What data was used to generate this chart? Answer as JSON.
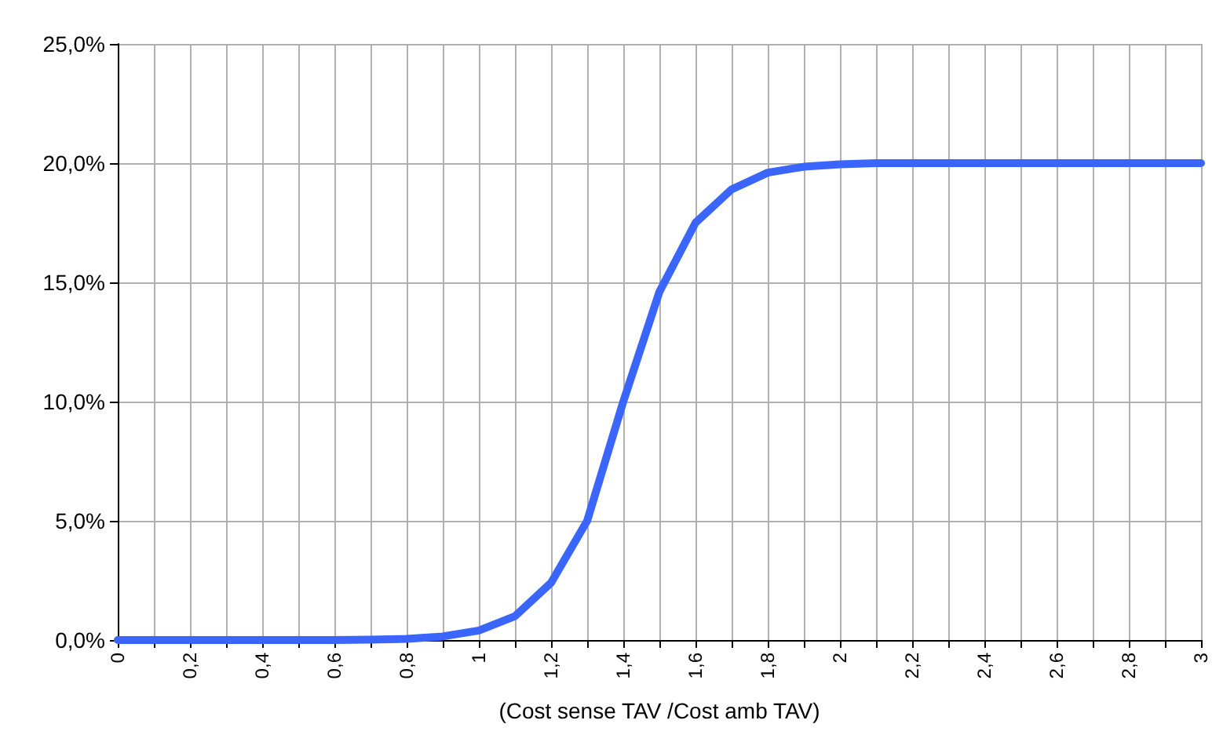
{
  "chart_data": {
    "type": "line",
    "xlabel": "(Cost sense TAV /Cost amb TAV)",
    "x": [
      0,
      0.2,
      0.4,
      0.6,
      0.7,
      0.8,
      0.9,
      1.0,
      1.1,
      1.2,
      1.3,
      1.4,
      1.5,
      1.6,
      1.7,
      1.8,
      1.9,
      2.0,
      2.1,
      2.2,
      2.4,
      2.6,
      2.8,
      3.0
    ],
    "series": [
      {
        "color": "#3a66ff",
        "values": [
          0,
          0,
          0,
          0,
          0.02,
          0.05,
          0.15,
          0.4,
          1.0,
          2.4,
          5.0,
          10.0,
          14.6,
          17.5,
          18.9,
          19.6,
          19.85,
          19.95,
          20,
          20,
          20,
          20,
          20,
          20
        ]
      }
    ],
    "xlim": [
      0,
      3
    ],
    "xticks": [
      {
        "value": 0,
        "label": "0"
      },
      {
        "value": 0.1,
        "label": null
      },
      {
        "value": 0.2,
        "label": "0,2"
      },
      {
        "value": 0.3,
        "label": null
      },
      {
        "value": 0.4,
        "label": "0,4"
      },
      {
        "value": 0.5,
        "label": null
      },
      {
        "value": 0.6,
        "label": "0,6"
      },
      {
        "value": 0.7,
        "label": null
      },
      {
        "value": 0.8,
        "label": "0,8"
      },
      {
        "value": 0.9,
        "label": null
      },
      {
        "value": 1,
        "label": "1"
      },
      {
        "value": 1.1,
        "label": null
      },
      {
        "value": 1.2,
        "label": "1,2"
      },
      {
        "value": 1.3,
        "label": null
      },
      {
        "value": 1.4,
        "label": "1,4"
      },
      {
        "value": 1.5,
        "label": null
      },
      {
        "value": 1.6,
        "label": "1,6"
      },
      {
        "value": 1.7,
        "label": null
      },
      {
        "value": 1.8,
        "label": "1,8"
      },
      {
        "value": 1.9,
        "label": null
      },
      {
        "value": 2,
        "label": "2"
      },
      {
        "value": 2.1,
        "label": null
      },
      {
        "value": 2.2,
        "label": "2,2"
      },
      {
        "value": 2.3,
        "label": null
      },
      {
        "value": 2.4,
        "label": "2,4"
      },
      {
        "value": 2.5,
        "label": null
      },
      {
        "value": 2.6,
        "label": "2,6"
      },
      {
        "value": 2.7,
        "label": null
      },
      {
        "value": 2.8,
        "label": "2,8"
      },
      {
        "value": 2.9,
        "label": null
      },
      {
        "value": 3,
        "label": "3"
      }
    ],
    "ylim": [
      0,
      25
    ],
    "yticks": [
      {
        "value": 0,
        "label": "0,0%"
      },
      {
        "value": 5,
        "label": "5,0%"
      },
      {
        "value": 10,
        "label": "10,0%"
      },
      {
        "value": 15,
        "label": "15,0%"
      },
      {
        "value": 20,
        "label": "20,0%"
      },
      {
        "value": 25,
        "label": "25,0%"
      }
    ],
    "grid": true,
    "marker": "none",
    "line_style": "solid"
  }
}
